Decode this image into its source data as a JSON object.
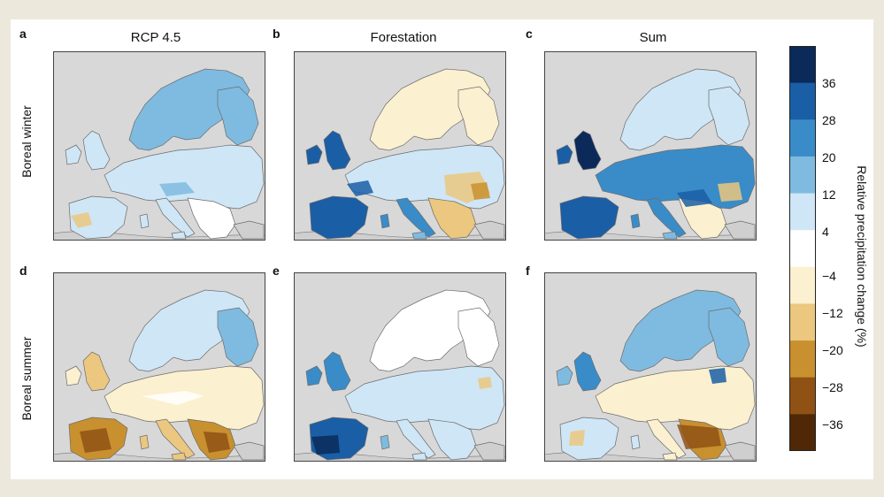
{
  "panels": [
    {
      "letter": "a",
      "column_title": "RCP 4.5",
      "row": 0,
      "col": 0
    },
    {
      "letter": "b",
      "column_title": "Forestation",
      "row": 0,
      "col": 1
    },
    {
      "letter": "c",
      "column_title": "Sum",
      "row": 0,
      "col": 2
    },
    {
      "letter": "d",
      "column_title": "",
      "row": 1,
      "col": 0
    },
    {
      "letter": "e",
      "column_title": "",
      "row": 1,
      "col": 1
    },
    {
      "letter": "f",
      "column_title": "",
      "row": 1,
      "col": 2
    }
  ],
  "row_labels": [
    "Boreal winter",
    "Boreal summer"
  ],
  "colorbar": {
    "title": "Relative precipitation change (%)",
    "ticks": [
      "36",
      "28",
      "20",
      "12",
      "4",
      "−4",
      "−12",
      "−20",
      "−28",
      "−36"
    ],
    "colors": [
      "#0b2a5a",
      "#1a5ea6",
      "#3a8cc8",
      "#7fbbe0",
      "#cfe6f6",
      "#ffffff",
      "#fbf0cf",
      "#ebc77f",
      "#c8902f",
      "#8f5214",
      "#4e2807"
    ]
  },
  "land_color": "#d8d8d8"
}
